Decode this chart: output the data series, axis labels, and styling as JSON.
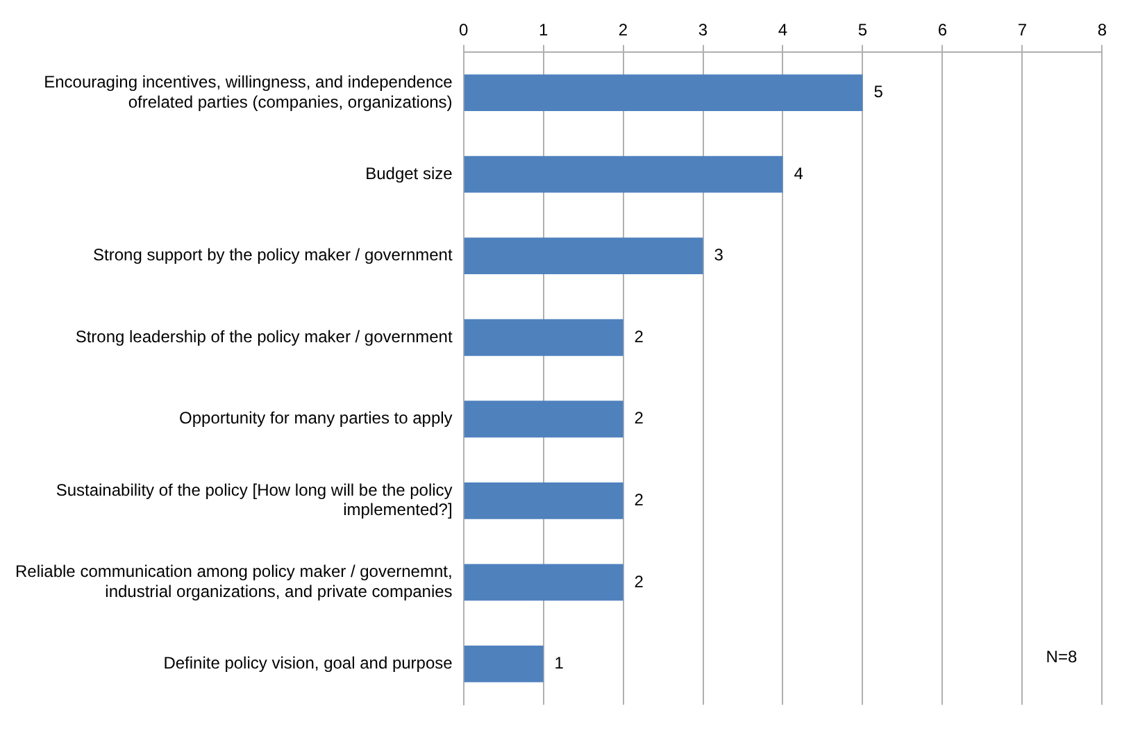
{
  "chart_data": {
    "type": "bar",
    "orientation": "horizontal",
    "categories": [
      "Encouraging incentives, willingness, and independence ofrelated parties (companies, organizations)",
      "Budget size",
      "Strong support by the policy maker / government",
      "Strong leadership of the policy maker / government",
      "Opportunity for many parties to apply",
      "Sustainability of the policy [How long will be the policy implemented?]",
      "Reliable communication among policy maker / governemnt, industrial organizations, and private companies",
      "Definite policy vision, goal and purpose"
    ],
    "values": [
      5,
      4,
      3,
      2,
      2,
      2,
      2,
      1
    ],
    "color": "#4f81bd",
    "xlim": [
      0,
      8
    ],
    "xticks": [
      0,
      1,
      2,
      3,
      4,
      5,
      6,
      7,
      8
    ],
    "grid": "x",
    "data_labels": true,
    "legend": false,
    "annotations": [
      "N=8"
    ]
  }
}
